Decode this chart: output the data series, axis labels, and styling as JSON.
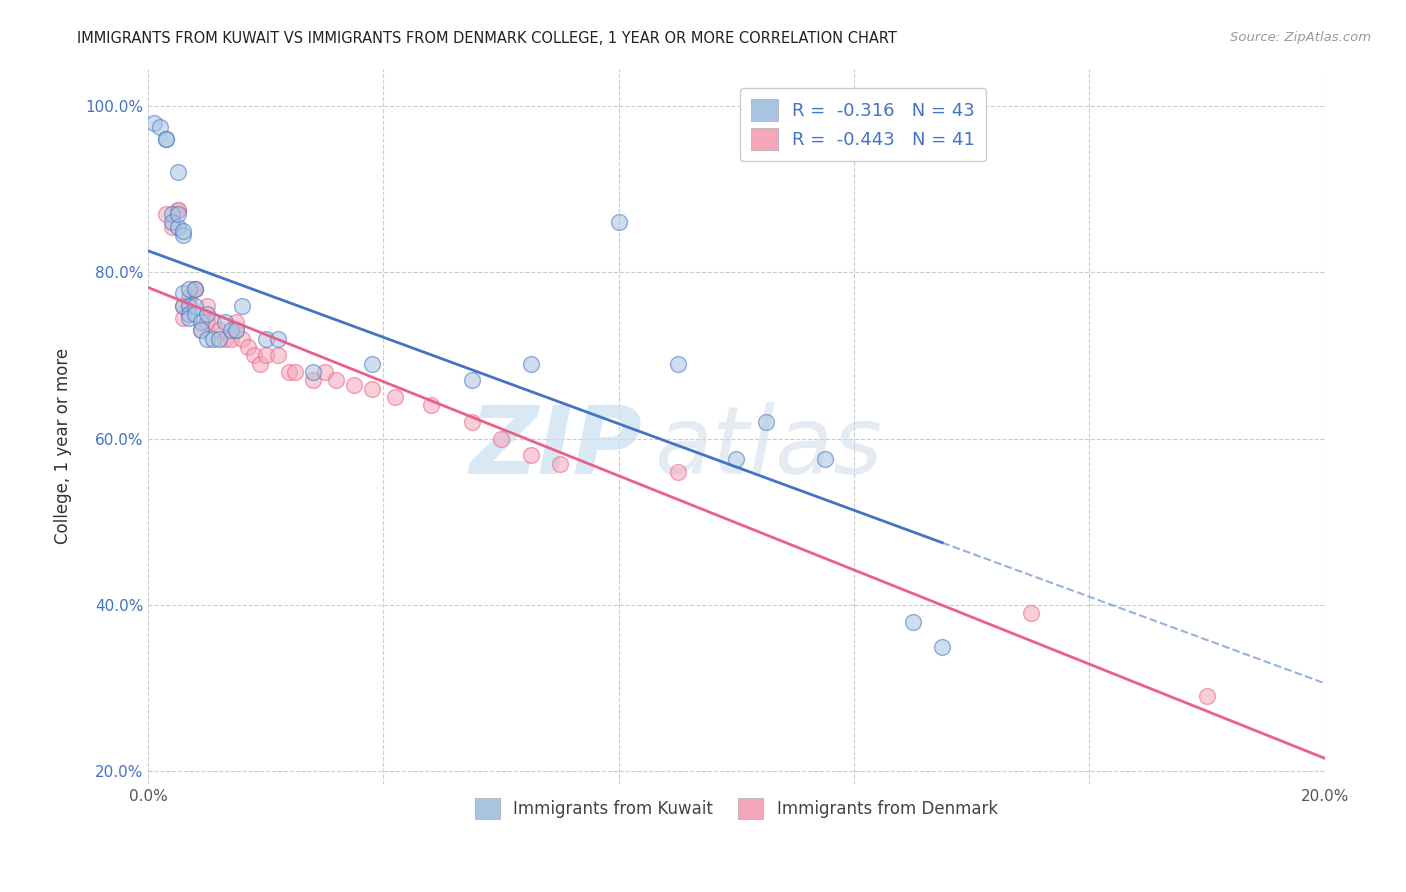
{
  "title": "IMMIGRANTS FROM KUWAIT VS IMMIGRANTS FROM DENMARK COLLEGE, 1 YEAR OR MORE CORRELATION CHART",
  "source": "Source: ZipAtlas.com",
  "ylabel": "College, 1 year or more",
  "legend_label_1": "Immigrants from Kuwait",
  "legend_label_2": "Immigrants from Denmark",
  "R1": -0.316,
  "N1": 43,
  "R2": -0.443,
  "N2": 41,
  "color_kuwait": "#a8c4e0",
  "color_denmark": "#f4a7b9",
  "line_color_kuwait": "#4472c4",
  "line_color_denmark": "#e8608a",
  "xmin": 0.0,
  "xmax": 0.2,
  "ymin": 0.185,
  "ymax": 1.045,
  "xticks": [
    0.0,
    0.04,
    0.08,
    0.12,
    0.16,
    0.2
  ],
  "yticks": [
    0.2,
    0.4,
    0.6,
    0.8,
    1.0
  ],
  "watermark_zip": "ZIP",
  "watermark_atlas": "atlas",
  "background_color": "#ffffff",
  "grid_color": "#cccccc",
  "kuwait_x": [
    0.001,
    0.002,
    0.003,
    0.003,
    0.004,
    0.004,
    0.005,
    0.005,
    0.005,
    0.006,
    0.006,
    0.006,
    0.006,
    0.007,
    0.007,
    0.007,
    0.007,
    0.008,
    0.008,
    0.008,
    0.009,
    0.009,
    0.01,
    0.01,
    0.011,
    0.012,
    0.013,
    0.014,
    0.015,
    0.016,
    0.02,
    0.022,
    0.028,
    0.038,
    0.055,
    0.065,
    0.08,
    0.09,
    0.1,
    0.105,
    0.115,
    0.13,
    0.135
  ],
  "kuwait_y": [
    0.98,
    0.975,
    0.96,
    0.96,
    0.87,
    0.86,
    0.92,
    0.855,
    0.87,
    0.845,
    0.85,
    0.76,
    0.775,
    0.78,
    0.76,
    0.75,
    0.745,
    0.78,
    0.76,
    0.75,
    0.74,
    0.73,
    0.75,
    0.72,
    0.72,
    0.72,
    0.74,
    0.73,
    0.73,
    0.76,
    0.72,
    0.72,
    0.68,
    0.69,
    0.67,
    0.69,
    0.86,
    0.69,
    0.575,
    0.62,
    0.575,
    0.38,
    0.35
  ],
  "denmark_x": [
    0.003,
    0.004,
    0.005,
    0.005,
    0.006,
    0.006,
    0.007,
    0.007,
    0.008,
    0.008,
    0.009,
    0.01,
    0.01,
    0.011,
    0.012,
    0.013,
    0.014,
    0.015,
    0.015,
    0.016,
    0.017,
    0.018,
    0.019,
    0.02,
    0.022,
    0.024,
    0.025,
    0.028,
    0.03,
    0.032,
    0.035,
    0.038,
    0.042,
    0.048,
    0.055,
    0.06,
    0.065,
    0.07,
    0.09,
    0.15,
    0.18
  ],
  "denmark_y": [
    0.87,
    0.855,
    0.875,
    0.875,
    0.76,
    0.745,
    0.77,
    0.76,
    0.78,
    0.78,
    0.73,
    0.76,
    0.74,
    0.74,
    0.73,
    0.72,
    0.72,
    0.74,
    0.73,
    0.72,
    0.71,
    0.7,
    0.69,
    0.7,
    0.7,
    0.68,
    0.68,
    0.67,
    0.68,
    0.67,
    0.665,
    0.66,
    0.65,
    0.64,
    0.62,
    0.6,
    0.58,
    0.57,
    0.56,
    0.39,
    0.29
  ]
}
